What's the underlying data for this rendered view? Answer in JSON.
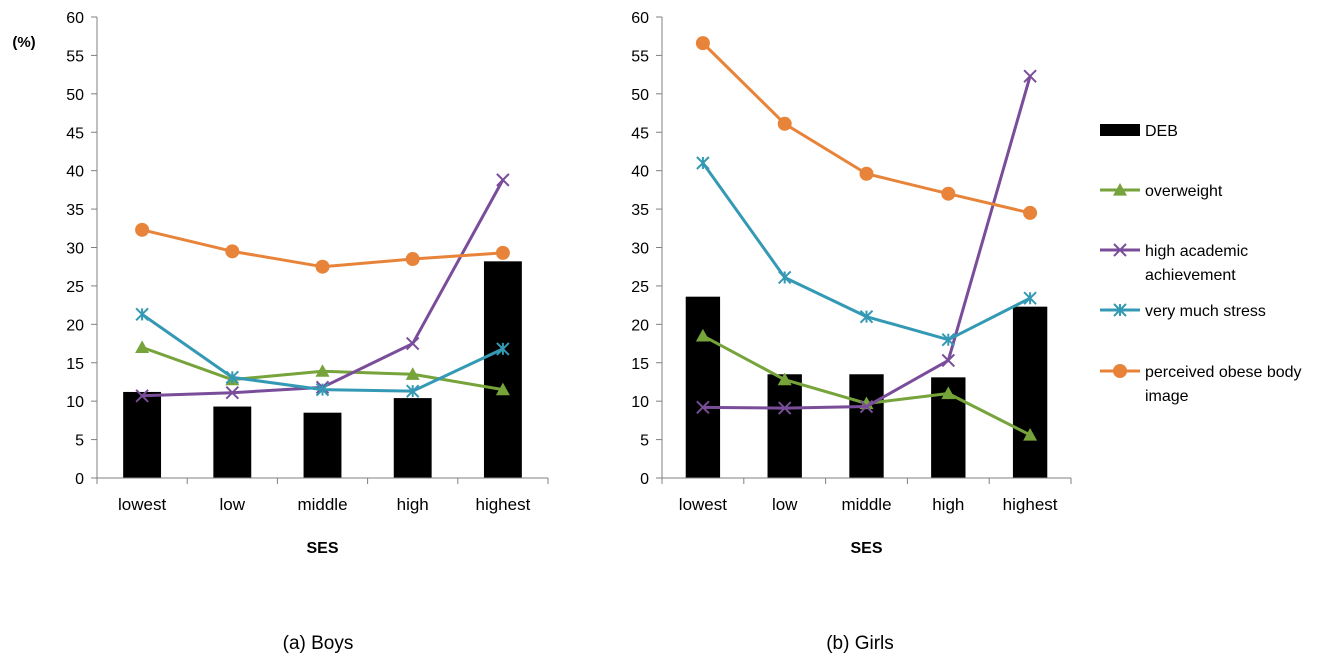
{
  "legend": [
    {
      "key": "DEB",
      "label": "DEB",
      "color": "#000000",
      "kind": "bar"
    },
    {
      "key": "overweight",
      "label": "overweight",
      "color": "#77a33b",
      "kind": "line",
      "marker": "triangle"
    },
    {
      "key": "achievement",
      "label": [
        "high academic",
        "achievement"
      ],
      "color": "#7a4d9a",
      "kind": "line",
      "marker": "x"
    },
    {
      "key": "stress",
      "label": "very much stress",
      "color": "#3499b4",
      "kind": "line",
      "marker": "asterisk"
    },
    {
      "key": "obese",
      "label": [
        "perceived obese body",
        "image"
      ],
      "color": "#e8833a",
      "kind": "line",
      "marker": "circle"
    }
  ],
  "chart_data": [
    {
      "type": "bar+line",
      "caption": "(a) Boys",
      "xlabel": "SES",
      "ylabel": "(%)",
      "ylim": [
        0,
        60
      ],
      "yticks": [
        0,
        5,
        10,
        15,
        20,
        25,
        30,
        35,
        40,
        45,
        50,
        55,
        60
      ],
      "categories": [
        "lowest",
        "low",
        "middle",
        "high",
        "highest"
      ],
      "bars": {
        "key": "DEB",
        "name": "DEB",
        "values": [
          11.2,
          9.3,
          8.5,
          10.4,
          28.2
        ]
      },
      "series": [
        {
          "key": "overweight",
          "name": "overweight",
          "values": [
            17.0,
            12.8,
            13.9,
            13.5,
            11.5
          ]
        },
        {
          "key": "achievement",
          "name": "high academic achievement",
          "values": [
            10.7,
            11.1,
            11.8,
            17.5,
            38.8
          ]
        },
        {
          "key": "stress",
          "name": "very much stress",
          "values": [
            21.3,
            13.1,
            11.5,
            11.3,
            16.8
          ]
        },
        {
          "key": "obese",
          "name": "perceived obese body image",
          "values": [
            32.3,
            29.5,
            27.5,
            28.5,
            29.3
          ]
        }
      ]
    },
    {
      "type": "bar+line",
      "caption": "(b) Girls",
      "xlabel": "SES",
      "ylabel": "",
      "ylim": [
        0,
        60
      ],
      "yticks": [
        0,
        5,
        10,
        15,
        20,
        25,
        30,
        35,
        40,
        45,
        50,
        55,
        60
      ],
      "categories": [
        "lowest",
        "low",
        "middle",
        "high",
        "highest"
      ],
      "bars": {
        "key": "DEB",
        "name": "DEB",
        "values": [
          23.6,
          13.5,
          13.5,
          13.1,
          22.3
        ]
      },
      "series": [
        {
          "key": "overweight",
          "name": "overweight",
          "values": [
            18.5,
            12.8,
            9.7,
            11.0,
            5.6
          ]
        },
        {
          "key": "achievement",
          "name": "high academic achievement",
          "values": [
            9.2,
            9.1,
            9.3,
            15.3,
            52.3
          ]
        },
        {
          "key": "stress",
          "name": "very much stress",
          "values": [
            41.0,
            26.1,
            21.0,
            18.0,
            23.4
          ]
        },
        {
          "key": "obese",
          "name": "perceived obese body image",
          "values": [
            56.6,
            46.1,
            39.6,
            37.0,
            34.5
          ]
        }
      ]
    }
  ]
}
